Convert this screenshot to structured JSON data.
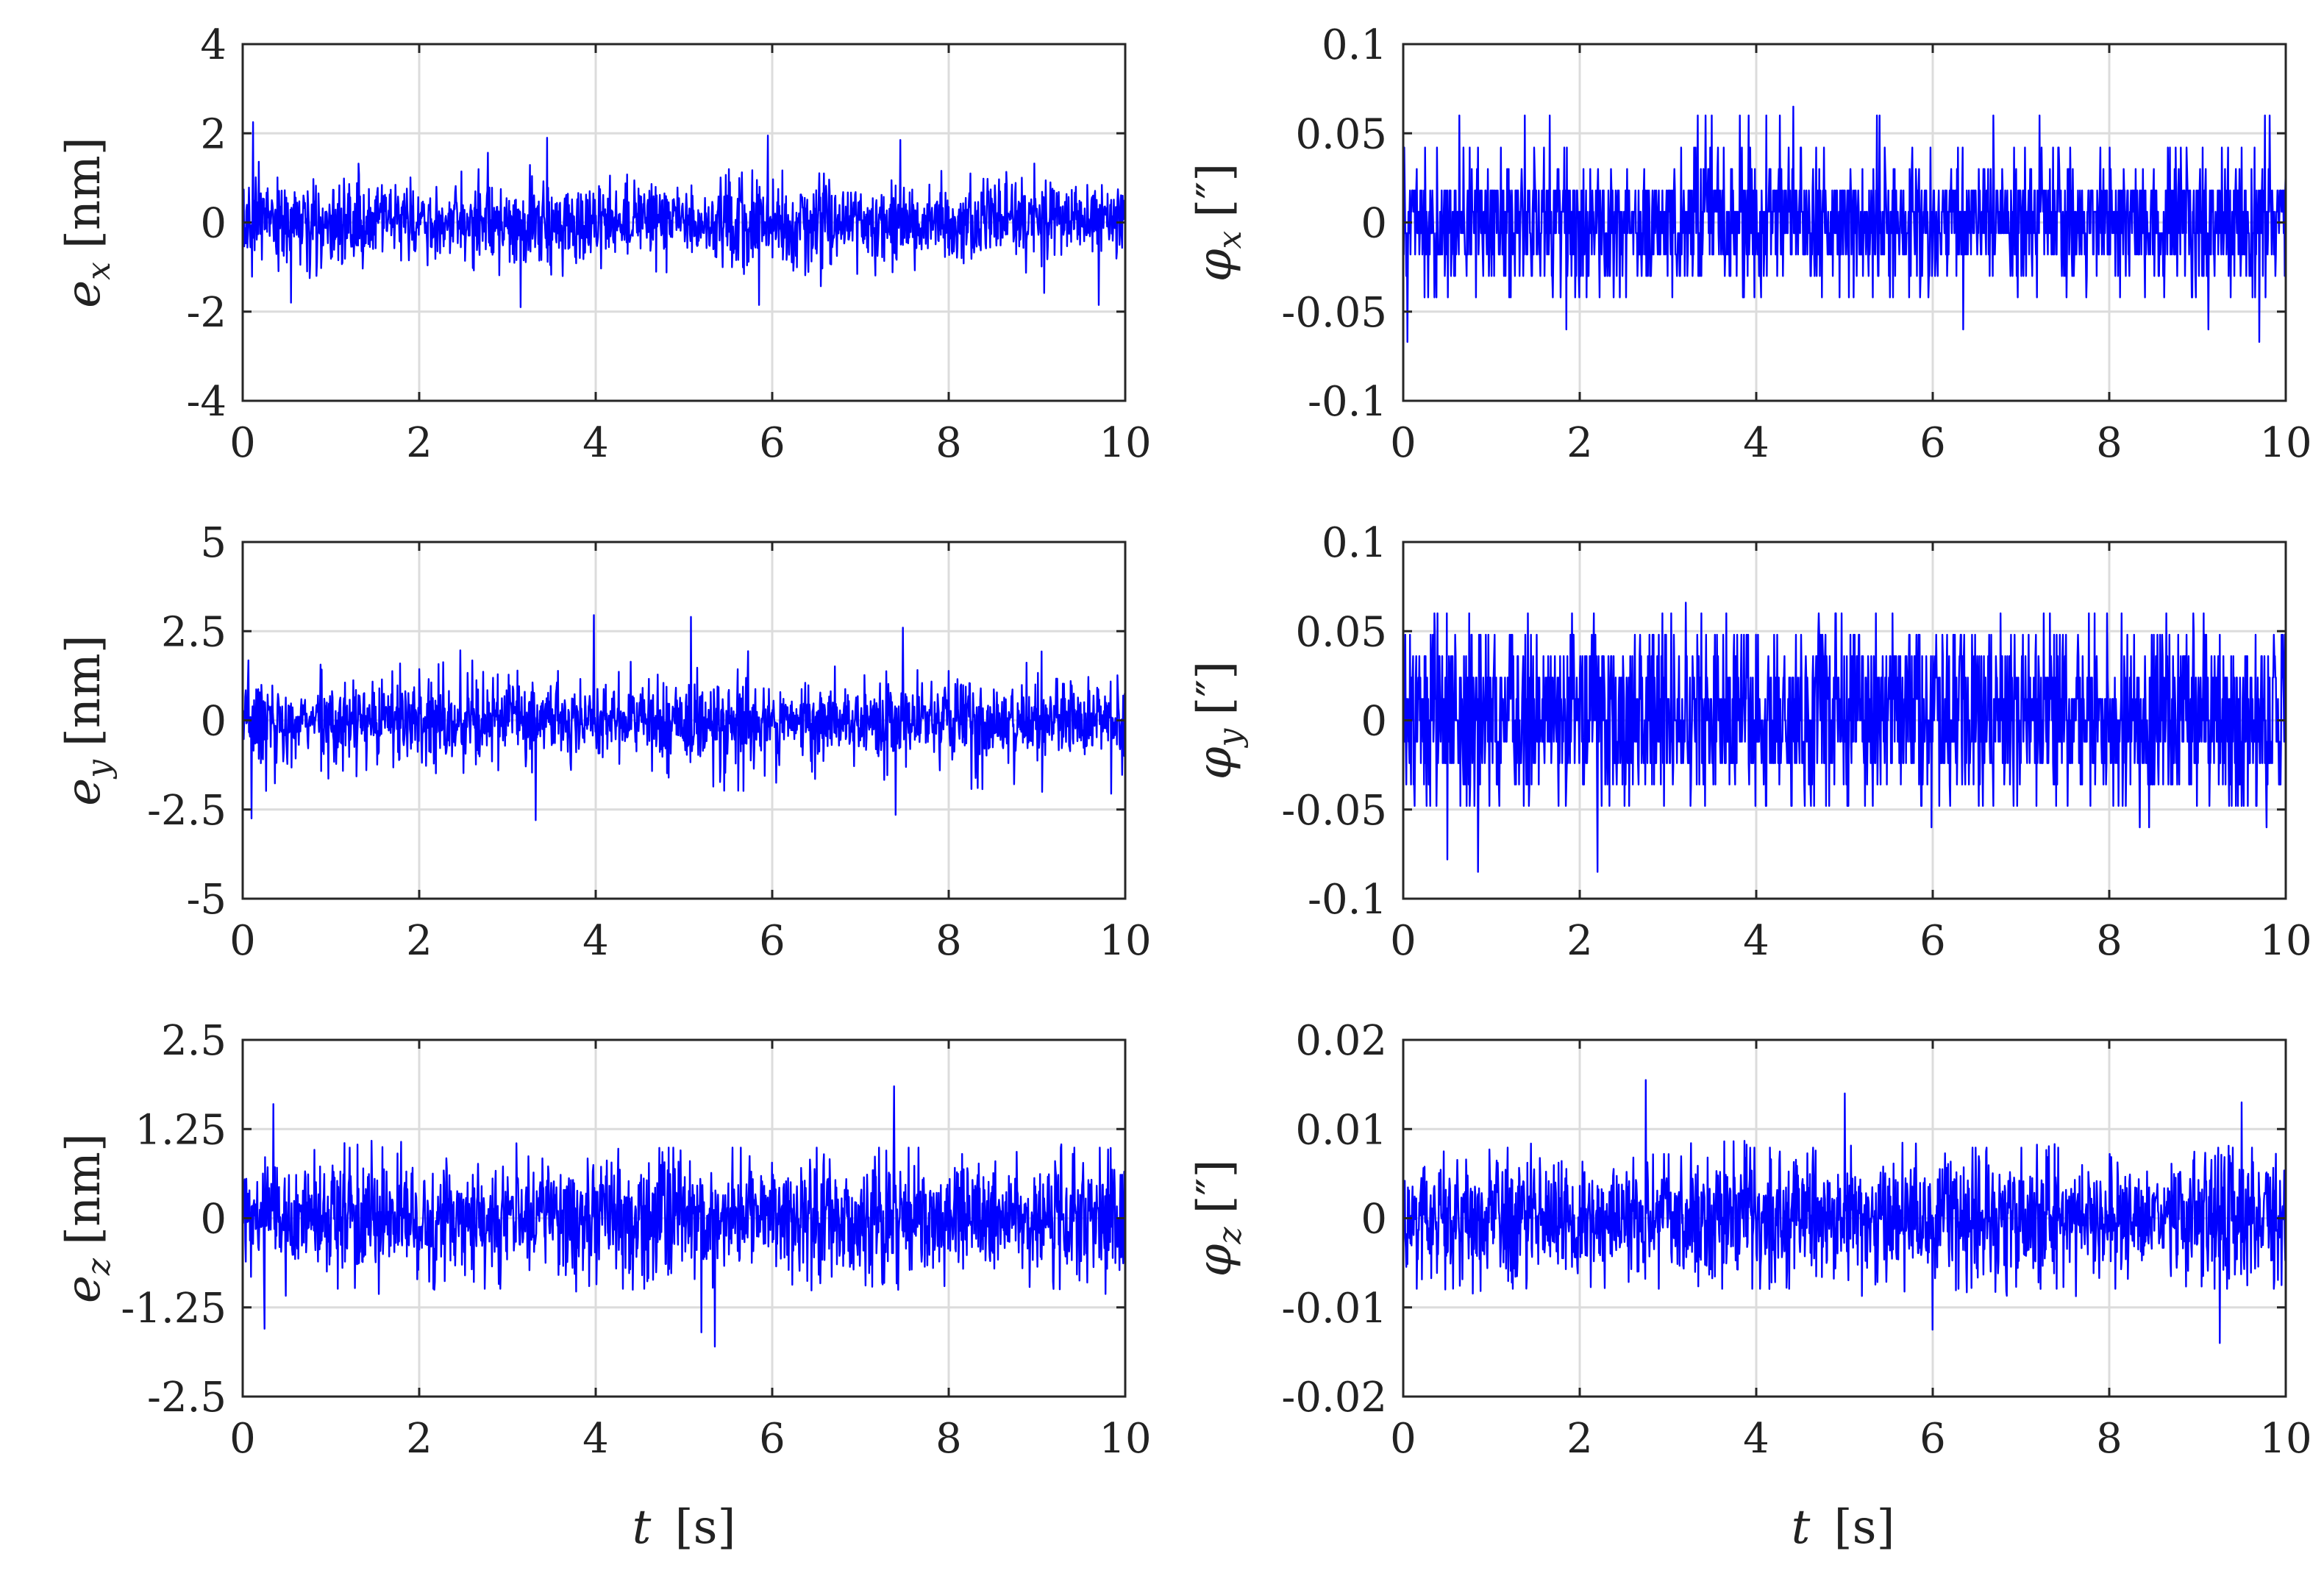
{
  "colors": {
    "series": "#0000ff",
    "axes": "#262626",
    "grid": "#dcdcdc",
    "text": "#222222"
  },
  "figure": {
    "xlabel_var": "t",
    "xlabel_unit": "[s]"
  },
  "chart_data": [
    {
      "id": "ex",
      "type": "line",
      "ylabel_var": "e",
      "ylabel_sub": "x",
      "ylabel_unit": "[nm]",
      "xlim": [
        0,
        10
      ],
      "ylim": [
        -4,
        4
      ],
      "xticks": [
        "0",
        "2",
        "4",
        "6",
        "8",
        "10"
      ],
      "yticks": [
        "-4",
        "-2",
        "0",
        "2",
        "4"
      ],
      "grid": true,
      "x": [
        0,
        10
      ],
      "signal": {
        "type": "noise",
        "std": 0.45,
        "extremes": [
          [
            0.12,
            2.25
          ],
          [
            3.45,
            1.9
          ],
          [
            5.95,
            1.95
          ],
          [
            7.45,
            1.85
          ],
          [
            0.55,
            -1.8
          ],
          [
            3.15,
            -1.9
          ],
          [
            5.85,
            -1.85
          ],
          [
            9.7,
            -1.85
          ]
        ]
      }
    },
    {
      "id": "phix",
      "type": "line",
      "ylabel_var": "φ",
      "ylabel_sub": "x",
      "ylabel_unit": "[″]",
      "xlim": [
        0,
        10
      ],
      "ylim": [
        -0.1,
        0.1
      ],
      "xticks": [
        "0",
        "2",
        "4",
        "6",
        "8",
        "10"
      ],
      "yticks": [
        "-0.1",
        "-0.05",
        "0",
        "0.05",
        "0.1"
      ],
      "grid": true,
      "x": [
        0,
        10
      ],
      "signal": {
        "type": "quantized",
        "levels": [
          -0.06,
          -0.042,
          -0.03,
          -0.018,
          -0.006,
          0.006,
          0.018,
          0.03,
          0.042,
          0.06
        ],
        "probs": [
          0.004,
          0.03,
          0.08,
          0.19,
          0.21,
          0.21,
          0.19,
          0.05,
          0.03,
          0.006
        ],
        "extremes": [
          [
            4.42,
            0.065
          ],
          [
            0.05,
            -0.067
          ],
          [
            9.7,
            -0.067
          ]
        ]
      }
    },
    {
      "id": "ey",
      "type": "line",
      "ylabel_var": "e",
      "ylabel_sub": "y",
      "ylabel_unit": "[nm]",
      "xlim": [
        0,
        10
      ],
      "ylim": [
        -5,
        5
      ],
      "xticks": [
        "0",
        "2",
        "4",
        "6",
        "8",
        "10"
      ],
      "yticks": [
        "-5",
        "-2.5",
        "0",
        "2.5",
        "5"
      ],
      "grid": true,
      "x": [
        0,
        10
      ],
      "signal": {
        "type": "noise",
        "std": 0.6,
        "extremes": [
          [
            3.98,
            2.95
          ],
          [
            5.08,
            2.9
          ],
          [
            7.48,
            2.6
          ],
          [
            3.32,
            -2.8
          ],
          [
            0.1,
            -2.75
          ],
          [
            7.4,
            -2.65
          ]
        ]
      }
    },
    {
      "id": "phiy",
      "type": "line",
      "ylabel_var": "φ",
      "ylabel_sub": "y",
      "ylabel_unit": "[″]",
      "xlim": [
        0,
        10
      ],
      "ylim": [
        -0.1,
        0.1
      ],
      "xticks": [
        "0",
        "2",
        "4",
        "6",
        "8",
        "10"
      ],
      "yticks": [
        "-0.1",
        "-0.05",
        "0",
        "0.05",
        "0.1"
      ],
      "grid": true,
      "x": [
        0,
        10
      ],
      "signal": {
        "type": "quantized",
        "levels": [
          -0.06,
          -0.048,
          -0.036,
          -0.024,
          -0.012,
          0,
          0.012,
          0.024,
          0.036,
          0.048,
          0.06
        ],
        "probs": [
          0.008,
          0.03,
          0.07,
          0.12,
          0.15,
          0.18,
          0.15,
          0.13,
          0.08,
          0.06,
          0.02
        ],
        "extremes": [
          [
            3.2,
            0.066
          ],
          [
            0.5,
            -0.078
          ],
          [
            0.85,
            -0.085
          ],
          [
            2.2,
            -0.085
          ]
        ]
      }
    },
    {
      "id": "ez",
      "type": "line",
      "ylabel_var": "e",
      "ylabel_sub": "z",
      "ylabel_unit": "[nm]",
      "xlim": [
        0,
        10
      ],
      "ylim": [
        -2.5,
        2.5
      ],
      "xticks": [
        "0",
        "2",
        "4",
        "6",
        "8",
        "10"
      ],
      "yticks": [
        "-2.5",
        "-1.25",
        "0",
        "1.25",
        "2.5"
      ],
      "grid": true,
      "x": [
        0,
        10
      ],
      "signal": {
        "type": "noise",
        "std": 0.42,
        "extremes": [
          [
            7.38,
            1.85
          ],
          [
            0.35,
            1.6
          ],
          [
            5.35,
            -1.8
          ],
          [
            5.2,
            -1.6
          ],
          [
            0.25,
            -1.55
          ]
        ]
      }
    },
    {
      "id": "phiz",
      "type": "line",
      "ylabel_var": "φ",
      "ylabel_sub": "z",
      "ylabel_unit": "[″]",
      "xlim": [
        0,
        10
      ],
      "ylim": [
        -0.02,
        0.02
      ],
      "xticks": [
        "0",
        "2",
        "4",
        "6",
        "8",
        "10"
      ],
      "yticks": [
        "-0.02",
        "-0.01",
        "0",
        "0.01",
        "0.02"
      ],
      "grid": true,
      "x": [
        0,
        10
      ],
      "signal": {
        "type": "noise",
        "std": 0.0035,
        "extremes": [
          [
            2.75,
            0.0155
          ],
          [
            5,
            0.014
          ],
          [
            9.5,
            0.013
          ],
          [
            9.25,
            -0.014
          ],
          [
            6,
            -0.0125
          ]
        ]
      }
    }
  ]
}
